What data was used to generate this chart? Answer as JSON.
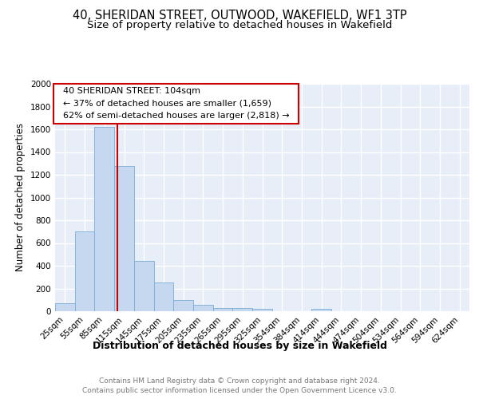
{
  "title1": "40, SHERIDAN STREET, OUTWOOD, WAKEFIELD, WF1 3TP",
  "title2": "Size of property relative to detached houses in Wakefield",
  "xlabel": "Distribution of detached houses by size in Wakefield",
  "ylabel": "Number of detached properties",
  "bar_color": "#c5d8f0",
  "bar_edge_color": "#7aadd4",
  "bg_color": "#e8eef8",
  "grid_color": "#ffffff",
  "categories": [
    "25sqm",
    "55sqm",
    "85sqm",
    "115sqm",
    "145sqm",
    "175sqm",
    "205sqm",
    "235sqm",
    "265sqm",
    "295sqm",
    "325sqm",
    "354sqm",
    "384sqm",
    "414sqm",
    "444sqm",
    "474sqm",
    "504sqm",
    "534sqm",
    "564sqm",
    "594sqm",
    "624sqm"
  ],
  "values": [
    70,
    700,
    1620,
    1280,
    440,
    255,
    95,
    55,
    30,
    28,
    18,
    0,
    0,
    18,
    0,
    0,
    0,
    0,
    0,
    0,
    0
  ],
  "ylim": [
    0,
    2000
  ],
  "yticks": [
    0,
    200,
    400,
    600,
    800,
    1000,
    1200,
    1400,
    1600,
    1800,
    2000
  ],
  "vline_x": 2.67,
  "vline_color": "#cc0000",
  "annotation_text": "  40 SHERIDAN STREET: 104sqm  \n  ← 37% of detached houses are smaller (1,659)  \n  62% of semi-detached houses are larger (2,818) →  ",
  "annotation_box_color": "#ffffff",
  "annotation_box_edge": "#cc0000",
  "footer_text": "Contains HM Land Registry data © Crown copyright and database right 2024.\nContains public sector information licensed under the Open Government Licence v3.0.",
  "title1_fontsize": 10.5,
  "title2_fontsize": 9.5,
  "ylabel_fontsize": 8.5,
  "xlabel_fontsize": 9,
  "tick_fontsize": 7.5,
  "annotation_fontsize": 8,
  "footer_fontsize": 6.5
}
